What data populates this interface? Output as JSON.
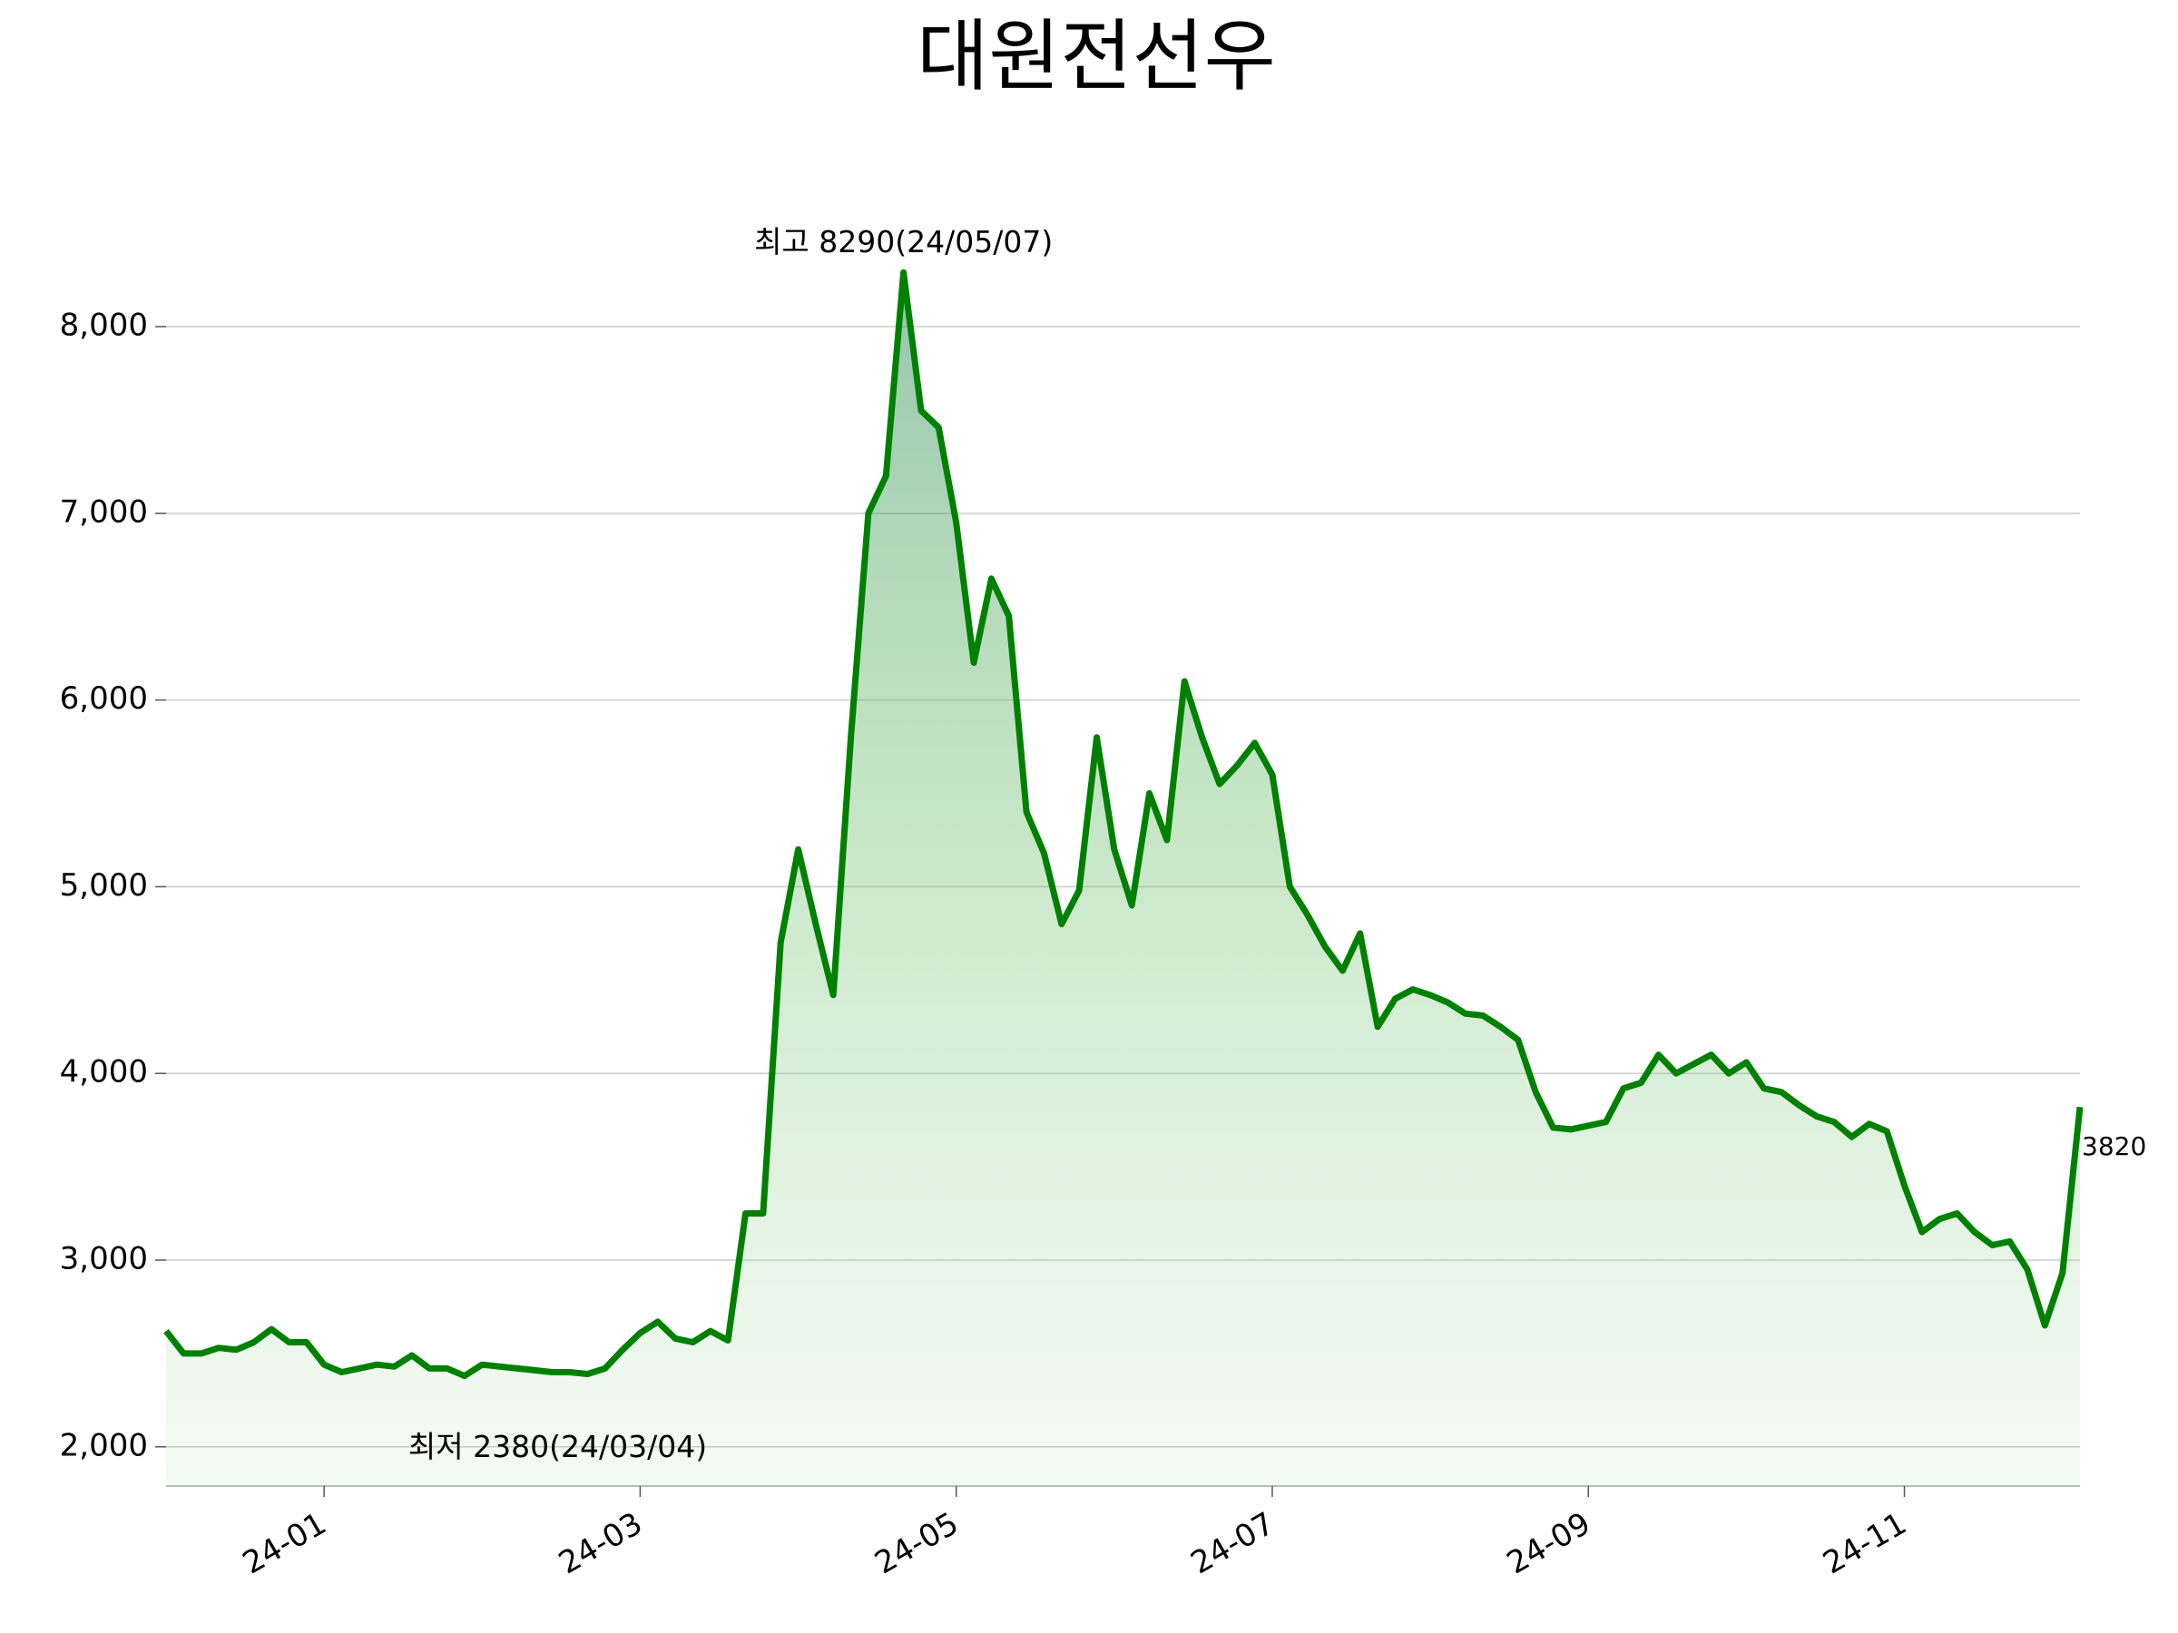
{
  "chart_data": {
    "type": "line",
    "title": "대원전선우",
    "categories": [
      null,
      null,
      null,
      null,
      null,
      null,
      null,
      null,
      null,
      "24-01",
      null,
      null,
      null,
      null,
      null,
      null,
      null,
      null,
      null,
      null,
      null,
      null,
      null,
      null,
      null,
      null,
      null,
      "24-03",
      null,
      null,
      null,
      null,
      null,
      null,
      null,
      null,
      null,
      null,
      null,
      null,
      null,
      null,
      null,
      null,
      null,
      "24-05",
      null,
      null,
      null,
      null,
      null,
      null,
      null,
      null,
      null,
      null,
      null,
      null,
      null,
      null,
      null,
      null,
      null,
      "24-07",
      null,
      null,
      null,
      null,
      null,
      null,
      null,
      null,
      null,
      null,
      null,
      null,
      null,
      null,
      null,
      null,
      null,
      "24-09",
      null,
      null,
      null,
      null,
      null,
      null,
      null,
      null,
      null,
      null,
      null,
      null,
      null,
      null,
      null,
      null,
      null,
      "24-11",
      null,
      null,
      null,
      null,
      null,
      null,
      null,
      null,
      null,
      null
    ],
    "series": [
      {
        "color": "#008000",
        "values": [
          2620,
          2500,
          2500,
          2530,
          2520,
          2560,
          2630,
          2560,
          2560,
          2440,
          2400,
          2420,
          2440,
          2430,
          2490,
          2420,
          2420,
          2380,
          2440,
          2430,
          2420,
          2410,
          2400,
          2400,
          2390,
          2420,
          2520,
          2610,
          2670,
          2580,
          2560,
          2620,
          2570,
          3250,
          3250,
          4700,
          5200,
          4800,
          4420,
          5800,
          7000,
          7200,
          8290,
          7550,
          7460,
          6950,
          6200,
          6650,
          6450,
          5400,
          5180,
          4800,
          4980,
          5800,
          5200,
          4900,
          5500,
          5250,
          6100,
          5800,
          5550,
          5650,
          5770,
          5600,
          5000,
          4850,
          4680,
          4550,
          4750,
          4250,
          4400,
          4450,
          4420,
          4380,
          4320,
          4310,
          4250,
          4180,
          3900,
          3710,
          3700,
          3720,
          3740,
          3920,
          3950,
          4100,
          4000,
          4050,
          4100,
          4000,
          4060,
          3920,
          3900,
          3830,
          3770,
          3740,
          3660,
          3730,
          3690,
          3400,
          3150,
          3220,
          3250,
          3150,
          3080,
          3100,
          2950,
          2650,
          2930,
          3820
        ]
      }
    ],
    "annotations": [
      "최고 8290(24/05/07)",
      "최저 2380(24/03/04)"
    ],
    "annotation_colors": [
      "#ff0000",
      "#0000ff"
    ],
    "ylim": [
      1790,
      8350
    ],
    "yticks": [
      {
        "value": 2000,
        "label": "2,000"
      },
      {
        "value": 3000,
        "label": "3,000"
      },
      {
        "value": 4000,
        "label": "4,000"
      },
      {
        "value": 5000,
        "label": "5,000"
      },
      {
        "value": 6000,
        "label": "6,000"
      },
      {
        "value": 7000,
        "label": "7,000"
      },
      {
        "value": 8000,
        "label": "8,000"
      }
    ],
    "grid": true
  }
}
